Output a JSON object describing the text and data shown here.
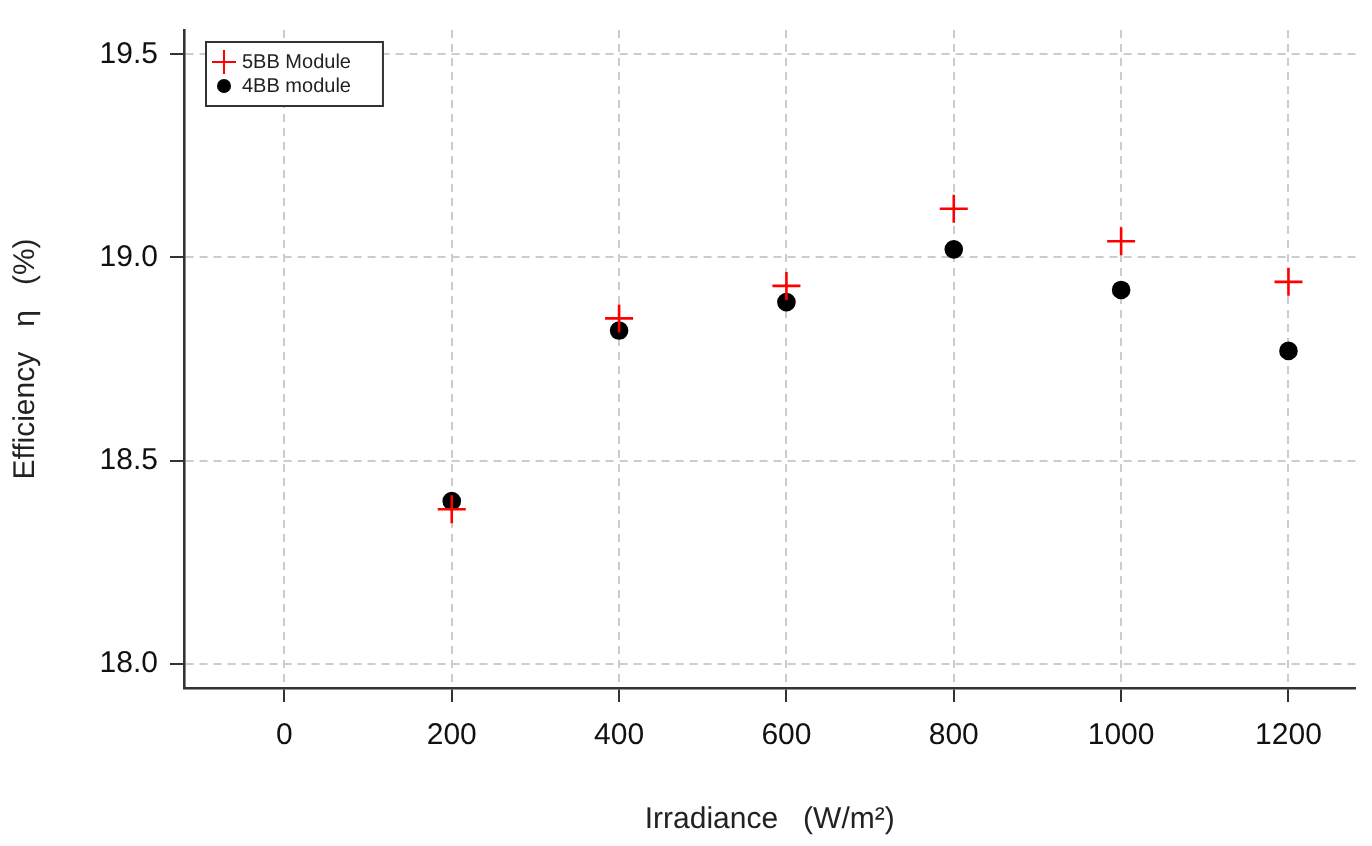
{
  "chart_data": {
    "type": "scatter",
    "xlabel": "Irradiance   (W/m²)",
    "ylabel": "Efficiency   η   (%)",
    "x": [
      200,
      400,
      600,
      800,
      1000,
      1200
    ],
    "series": [
      {
        "name": "5BB Module",
        "color": "#ff0000",
        "marker": "cross",
        "values": [
          18.38,
          18.85,
          18.93,
          19.12,
          19.04,
          18.94
        ]
      },
      {
        "name": "4BB module",
        "color": "#000000",
        "marker": "circle",
        "values": [
          18.4,
          18.82,
          18.89,
          19.02,
          18.92,
          18.77
        ]
      }
    ],
    "xlim": [
      -120,
      1280
    ],
    "xticks": [
      0,
      200,
      400,
      600,
      800,
      1000,
      1200
    ],
    "ylim": [
      17.94,
      19.56
    ],
    "yticks": [
      {
        "value": 18,
        "label": "18.0"
      },
      {
        "value": 18.5,
        "label": "18.5"
      },
      {
        "value": 19,
        "label": "19.0"
      },
      {
        "value": 19.5,
        "label": "19.5"
      }
    ],
    "grid": true,
    "legend": "top left"
  }
}
